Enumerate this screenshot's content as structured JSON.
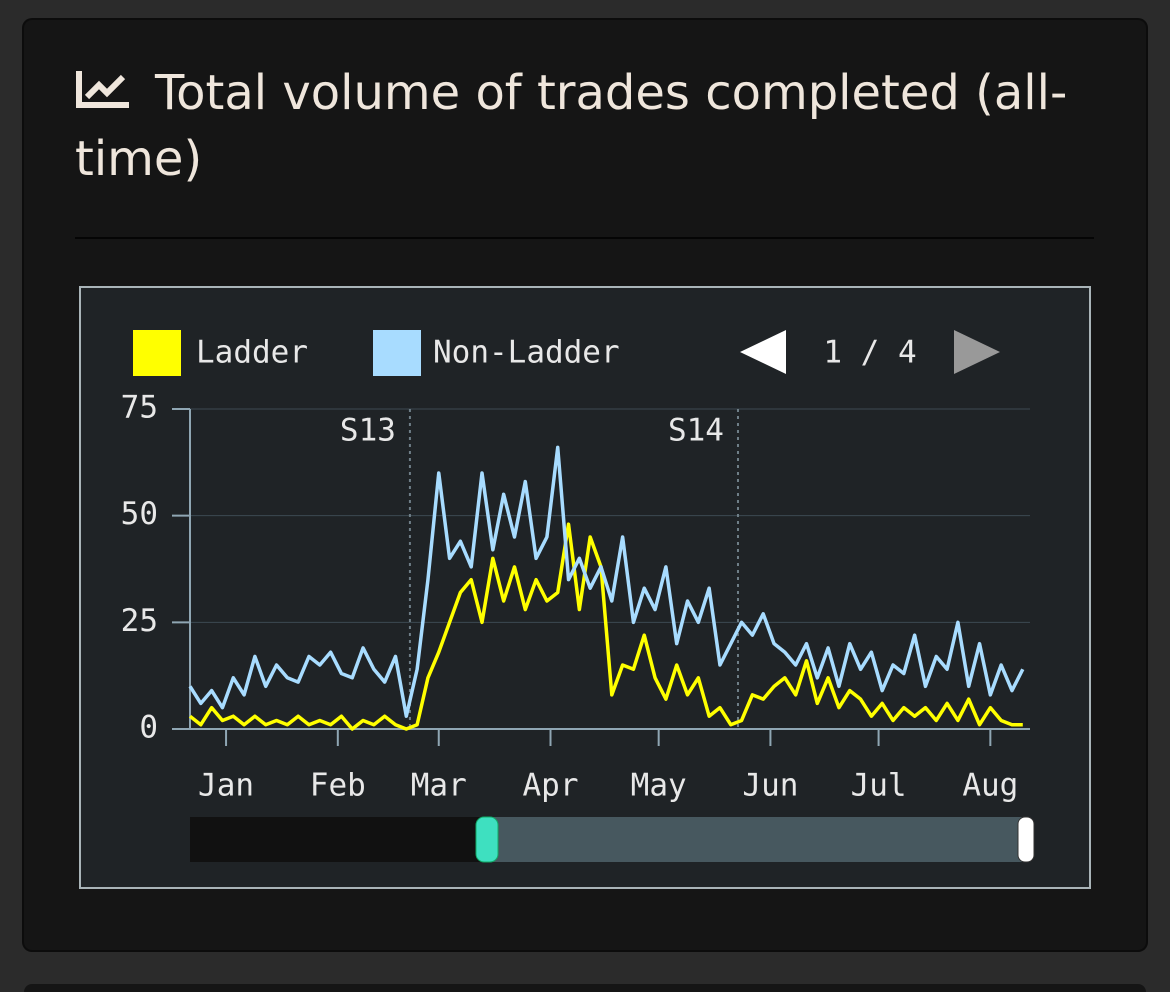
{
  "header": {
    "title": "Total volume of trades completed (all-time)"
  },
  "pager": {
    "label": "1 / 4"
  },
  "chart_data": {
    "type": "line",
    "x": [
      -10,
      -7,
      -4,
      -1,
      2,
      5,
      8,
      11,
      14,
      17,
      20,
      23,
      26,
      29,
      32,
      35,
      38,
      41,
      44,
      47,
      50,
      53,
      56,
      59,
      62,
      65,
      68,
      71,
      74,
      77,
      80,
      83,
      86,
      89,
      92,
      95,
      98,
      101,
      104,
      107,
      110,
      113,
      116,
      119,
      122,
      125,
      128,
      131,
      134,
      137,
      140,
      143,
      146,
      149,
      152,
      155,
      158,
      161,
      164,
      167,
      170,
      173,
      176,
      179,
      182,
      185,
      188,
      191,
      194,
      197,
      200,
      203,
      206,
      209,
      212,
      215,
      218,
      221
    ],
    "xlim": [
      -10,
      223
    ],
    "xticks": [
      {
        "value": 0,
        "label": "Jan"
      },
      {
        "value": 31,
        "label": "Feb"
      },
      {
        "value": 59,
        "label": "Mar"
      },
      {
        "value": 90,
        "label": "Apr"
      },
      {
        "value": 120,
        "label": "May"
      },
      {
        "value": 151,
        "label": "Jun"
      },
      {
        "value": 181,
        "label": "Jul"
      },
      {
        "value": 212,
        "label": "Aug"
      }
    ],
    "ylim": [
      0,
      75
    ],
    "yticks": [
      0,
      25,
      50,
      75
    ],
    "grid": true,
    "markers": [
      {
        "x": 51,
        "label": "S13"
      },
      {
        "x": 142,
        "label": "S14"
      }
    ],
    "series": [
      {
        "name": "Ladder",
        "color": "#ffff00",
        "values": [
          3,
          1,
          5,
          2,
          3,
          1,
          3,
          1,
          2,
          1,
          3,
          1,
          2,
          1,
          3,
          0,
          2,
          1,
          3,
          1,
          0,
          1,
          12,
          18,
          25,
          32,
          35,
          25,
          40,
          30,
          38,
          28,
          35,
          30,
          32,
          48,
          28,
          45,
          38,
          8,
          15,
          14,
          22,
          12,
          7,
          15,
          8,
          12,
          3,
          5,
          1,
          2,
          8,
          7,
          10,
          12,
          8,
          16,
          6,
          12,
          5,
          9,
          7,
          3,
          6,
          2,
          5,
          3,
          5,
          2,
          6,
          2,
          7,
          1,
          5,
          2,
          1,
          1
        ]
      },
      {
        "name": "Non-Ladder",
        "color": "#a8dcff",
        "values": [
          10,
          6,
          9,
          5,
          12,
          8,
          17,
          10,
          15,
          12,
          11,
          17,
          15,
          18,
          13,
          12,
          19,
          14,
          11,
          17,
          3,
          14,
          35,
          60,
          40,
          44,
          38,
          60,
          42,
          55,
          45,
          58,
          40,
          45,
          66,
          35,
          40,
          33,
          38,
          30,
          45,
          25,
          33,
          28,
          38,
          20,
          30,
          25,
          33,
          15,
          20,
          25,
          22,
          27,
          20,
          18,
          15,
          20,
          12,
          19,
          10,
          20,
          14,
          18,
          9,
          15,
          13,
          22,
          10,
          17,
          14,
          25,
          10,
          20,
          8,
          15,
          9,
          14
        ]
      }
    ]
  }
}
